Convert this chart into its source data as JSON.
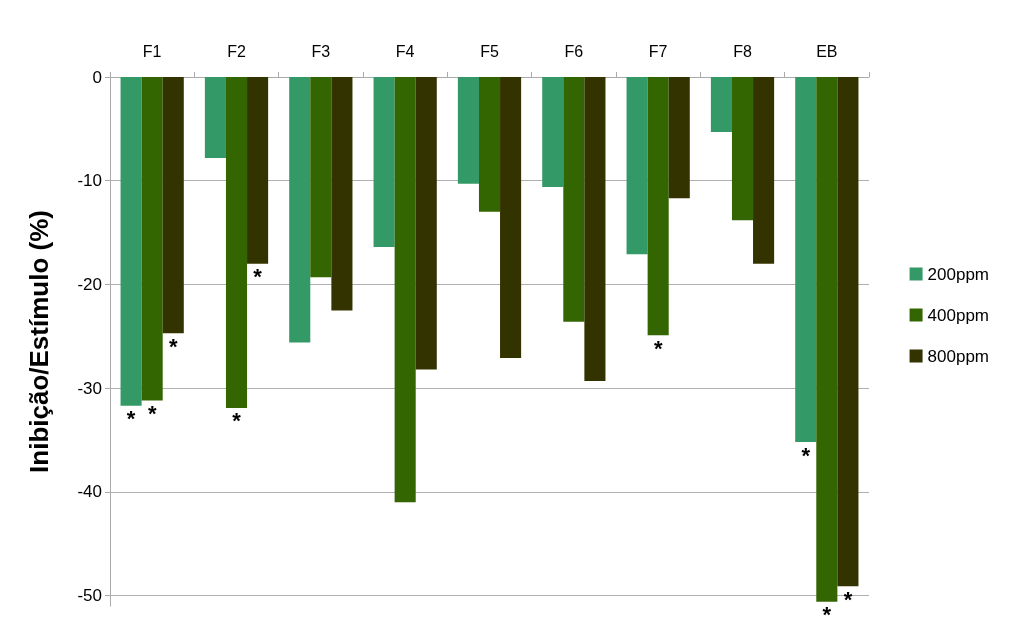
{
  "chart_data": {
    "type": "bar",
    "ylabel": "Inibição/Estímulo (%)",
    "categories": [
      "F1",
      "F2",
      "F3",
      "F4",
      "F5",
      "F6",
      "F7",
      "F8",
      "EB"
    ],
    "series": [
      {
        "name": "200ppm",
        "color": "#339966",
        "values": [
          -31.7,
          -7.8,
          -25.6,
          -16.4,
          -10.3,
          -10.6,
          -17.1,
          -5.3,
          -35.2
        ],
        "value_labels": [
          "*",
          null,
          null,
          null,
          null,
          null,
          null,
          null,
          "*"
        ]
      },
      {
        "name": "400ppm",
        "color": "#336600",
        "values": [
          -31.2,
          -31.9,
          -19.3,
          -41.0,
          -13.0,
          -23.6,
          -24.9,
          -13.8,
          -50.6
        ],
        "value_labels": [
          "*",
          "*",
          null,
          null,
          null,
          null,
          "*",
          null,
          "*"
        ]
      },
      {
        "name": "800ppm",
        "color": "#333300",
        "values": [
          -24.7,
          -18.0,
          -22.5,
          -28.2,
          -27.1,
          -29.3,
          -11.7,
          -18.0,
          -49.1
        ],
        "value_labels": [
          "*",
          "*",
          null,
          null,
          null,
          null,
          null,
          null,
          "*"
        ]
      }
    ],
    "ylim": [
      -51,
      0
    ],
    "yticks": [
      0,
      -10,
      -20,
      -30,
      -40,
      -50
    ],
    "grid": "y",
    "legend": "right"
  }
}
